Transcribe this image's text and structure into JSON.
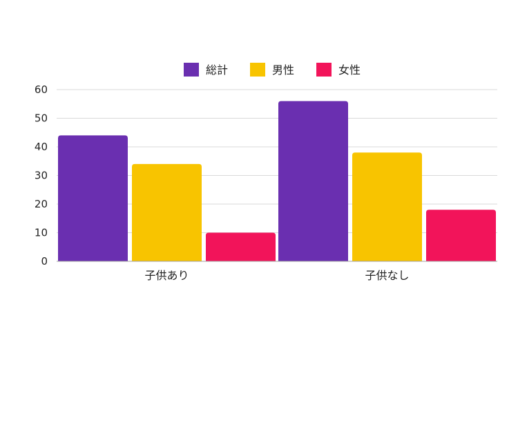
{
  "chart_data": {
    "type": "bar",
    "title": "",
    "xlabel": "",
    "ylabel": "",
    "categories": [
      "子供あり",
      "子供なし"
    ],
    "series": [
      {
        "name": "総計",
        "values": [
          44,
          56
        ],
        "color": "#6a2fb0"
      },
      {
        "name": "男性",
        "values": [
          34,
          38
        ],
        "color": "#f8c400"
      },
      {
        "name": "女性",
        "values": [
          10,
          18
        ],
        "color": "#f2145a"
      }
    ],
    "ylim": [
      0,
      60
    ],
    "yticks": [
      0,
      10,
      20,
      30,
      40,
      50,
      60
    ],
    "grid": true,
    "legend": "top-center"
  }
}
